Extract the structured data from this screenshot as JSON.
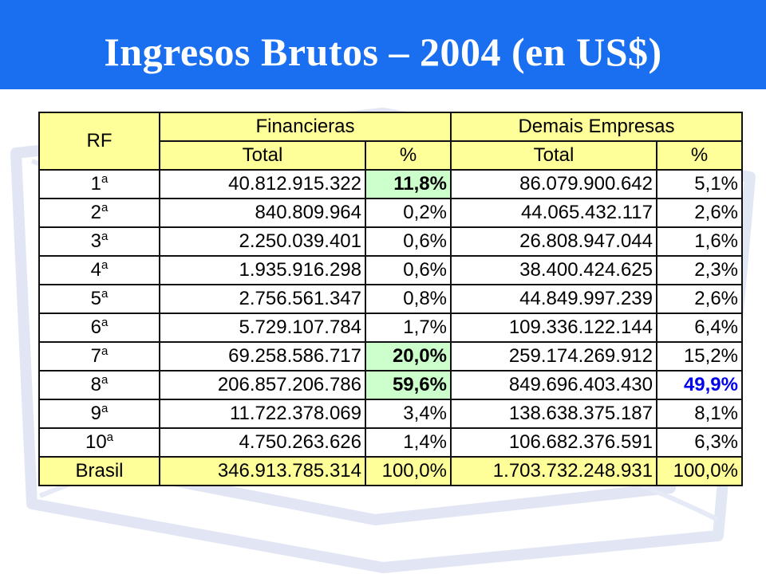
{
  "header": {
    "title": "Ingresos Brutos – 2004 (en US$)",
    "background_color": "#1a6ff0"
  },
  "table": {
    "headers": {
      "rf": "RF",
      "group_financieras": "Financieras",
      "group_demais": "Demais Empresas",
      "col_total_1": "Total",
      "col_pct_1": "%",
      "col_total_2": "Total",
      "col_pct_2": "%"
    },
    "header_color": "#ffff99",
    "highlight_color": "#ccffcc",
    "emphasis_text_color": "#0000ee",
    "rows": [
      {
        "rf": "1",
        "sup": "a",
        "fin_total": "40.812.915.322",
        "fin_pct": "11,8%",
        "dem_total": "86.079.900.642",
        "dem_pct": "5,1%"
      },
      {
        "rf": "2",
        "sup": "a",
        "fin_total": "840.809.964",
        "fin_pct": "0,2%",
        "dem_total": "44.065.432.117",
        "dem_pct": "2,6%"
      },
      {
        "rf": "3",
        "sup": "a",
        "fin_total": "2.250.039.401",
        "fin_pct": "0,6%",
        "dem_total": "26.808.947.044",
        "dem_pct": "1,6%"
      },
      {
        "rf": "4",
        "sup": "a",
        "fin_total": "1.935.916.298",
        "fin_pct": "0,6%",
        "dem_total": "38.400.424.625",
        "dem_pct": "2,3%"
      },
      {
        "rf": "5",
        "sup": "a",
        "fin_total": "2.756.561.347",
        "fin_pct": "0,8%",
        "dem_total": "44.849.997.239",
        "dem_pct": "2,6%"
      },
      {
        "rf": "6",
        "sup": "a",
        "fin_total": "5.729.107.784",
        "fin_pct": "1,7%",
        "dem_total": "109.336.122.144",
        "dem_pct": "6,4%"
      },
      {
        "rf": "7",
        "sup": "a",
        "fin_total": "69.258.586.717",
        "fin_pct": "20,0%",
        "dem_total": "259.174.269.912",
        "dem_pct": "15,2%"
      },
      {
        "rf": "8",
        "sup": "a",
        "fin_total": "206.857.206.786",
        "fin_pct": "59,6%",
        "dem_total": "849.696.403.430",
        "dem_pct": "49,9%"
      },
      {
        "rf": "9",
        "sup": "a",
        "fin_total": "11.722.378.069",
        "fin_pct": "3,4%",
        "dem_total": "138.638.375.187",
        "dem_pct": "8,1%"
      },
      {
        "rf": "10",
        "sup": "a",
        "fin_total": "4.750.263.626",
        "fin_pct": "1,4%",
        "dem_total": "106.682.376.591",
        "dem_pct": "6,3%"
      }
    ],
    "total_row": {
      "rf": "Brasil",
      "fin_total": "346.913.785.314",
      "fin_pct": "100,0%",
      "dem_total": "1.703.732.248.931",
      "dem_pct": "100,0%"
    }
  }
}
